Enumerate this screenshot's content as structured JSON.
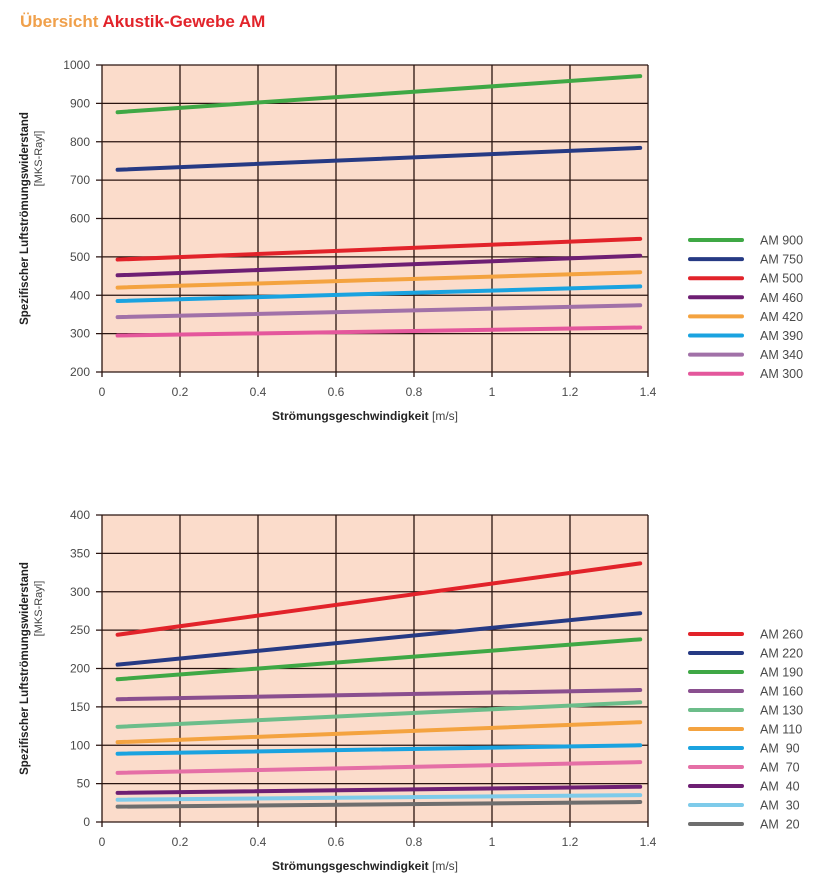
{
  "title": {
    "part1": "Übersicht",
    "part2": "Akustik-Gewebe AM"
  },
  "chart_data": [
    {
      "type": "line",
      "title": "",
      "xlabel": "Strömungsgeschwindigkeit",
      "xlabel_unit": "[m/s]",
      "ylabel": "Spezifischer Luftströmungswiderstand",
      "ylabel_unit": "[MKS-Rayl]",
      "xlim": [
        0,
        1.4
      ],
      "ylim": [
        200,
        1000
      ],
      "xticks": [
        0,
        0.2,
        0.4,
        0.6,
        0.8,
        1,
        1.2,
        1.4
      ],
      "xtick_labels": [
        "0",
        "0.2",
        "0.4",
        "0.6",
        "0.8",
        "1",
        "1.2",
        "1.4"
      ],
      "yticks": [
        200,
        300,
        400,
        500,
        600,
        700,
        800,
        900,
        1000
      ],
      "ytick_labels": [
        "200",
        "300",
        "400",
        "500",
        "600",
        "700",
        "800",
        "900",
        "1000"
      ],
      "grid": true,
      "legend_position": "right",
      "background": "#fbdccb",
      "series": [
        {
          "name": "AM 900",
          "color": "#3fa845",
          "x": [
            0.04,
            1.38
          ],
          "y": [
            877,
            971
          ]
        },
        {
          "name": "AM 750",
          "color": "#263a84",
          "x": [
            0.04,
            1.38
          ],
          "y": [
            727,
            784
          ]
        },
        {
          "name": "AM 500",
          "color": "#e2232a",
          "x": [
            0.04,
            1.38
          ],
          "y": [
            493,
            547
          ]
        },
        {
          "name": "AM 460",
          "color": "#6e1f73",
          "x": [
            0.04,
            1.38
          ],
          "y": [
            452,
            503
          ]
        },
        {
          "name": "AM 420",
          "color": "#f4a340",
          "x": [
            0.04,
            1.38
          ],
          "y": [
            420,
            460
          ]
        },
        {
          "name": "AM 390",
          "color": "#1aa3e0",
          "x": [
            0.04,
            1.38
          ],
          "y": [
            385,
            423
          ]
        },
        {
          "name": "AM 340",
          "color": "#a171a8",
          "x": [
            0.04,
            1.38
          ],
          "y": [
            343,
            374
          ]
        },
        {
          "name": "AM 300",
          "color": "#e4579c",
          "x": [
            0.04,
            1.38
          ],
          "y": [
            295,
            316
          ]
        }
      ]
    },
    {
      "type": "line",
      "title": "",
      "xlabel": "Strömungsgeschwindigkeit",
      "xlabel_unit": "[m/s]",
      "ylabel": "Spezifischer Luftströmungswiderstand",
      "ylabel_unit": "[MKS-Rayl]",
      "xlim": [
        0,
        1.4
      ],
      "ylim": [
        0,
        400
      ],
      "xticks": [
        0,
        0.2,
        0.4,
        0.6,
        0.8,
        1,
        1.2,
        1.4
      ],
      "xtick_labels": [
        "0",
        "0.2",
        "0.4",
        "0.6",
        "0.8",
        "1",
        "1.2",
        "1.4"
      ],
      "yticks": [
        0,
        50,
        100,
        150,
        200,
        250,
        300,
        350,
        400
      ],
      "ytick_labels": [
        "0",
        "50",
        "100",
        "150",
        "200",
        "250",
        "300",
        "350",
        "400"
      ],
      "grid": true,
      "legend_position": "right",
      "background": "#fbdccb",
      "series": [
        {
          "name": "AM 260",
          "color": "#e2232a",
          "x": [
            0.04,
            1.38
          ],
          "y": [
            244,
            337
          ]
        },
        {
          "name": "AM 220",
          "color": "#263a84",
          "x": [
            0.04,
            1.38
          ],
          "y": [
            205,
            272
          ]
        },
        {
          "name": "AM 190",
          "color": "#3fa845",
          "x": [
            0.04,
            1.38
          ],
          "y": [
            186,
            238
          ]
        },
        {
          "name": "AM 160",
          "color": "#8a4f8f",
          "x": [
            0.04,
            1.38
          ],
          "y": [
            160,
            172
          ]
        },
        {
          "name": "AM 130",
          "color": "#6cbd8a",
          "x": [
            0.04,
            1.38
          ],
          "y": [
            124,
            156
          ]
        },
        {
          "name": "AM 110",
          "color": "#f4a340",
          "x": [
            0.04,
            1.38
          ],
          "y": [
            104,
            130
          ]
        },
        {
          "name": "AM  90",
          "color": "#1aa3e0",
          "x": [
            0.04,
            1.38
          ],
          "y": [
            89,
            100
          ]
        },
        {
          "name": "AM  70",
          "color": "#e56fa6",
          "x": [
            0.04,
            1.38
          ],
          "y": [
            64,
            78
          ]
        },
        {
          "name": "AM  40",
          "color": "#6e1f73",
          "x": [
            0.04,
            1.38
          ],
          "y": [
            38,
            46
          ]
        },
        {
          "name": "AM  30",
          "color": "#7ecbea",
          "x": [
            0.04,
            1.38
          ],
          "y": [
            29,
            35
          ]
        },
        {
          "name": "AM  20",
          "color": "#6e6e6e",
          "x": [
            0.04,
            1.38
          ],
          "y": [
            20,
            26
          ]
        }
      ]
    }
  ]
}
